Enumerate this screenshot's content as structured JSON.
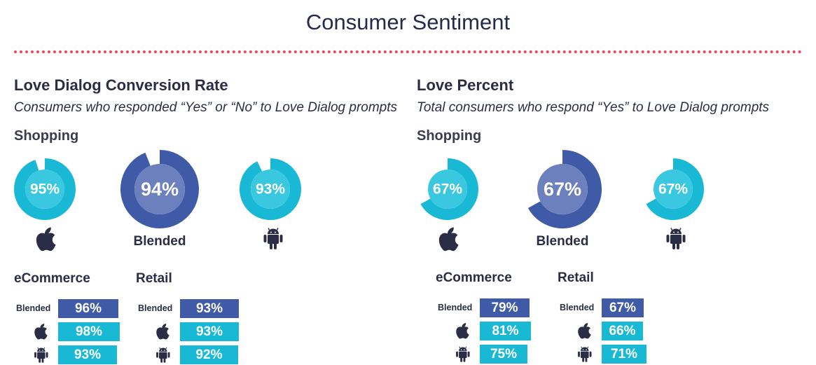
{
  "title": "Consumer Sentiment",
  "colors": {
    "blended": "#3f5aa6",
    "blended_inner": "#6b80bd",
    "platform": "#19b9d6",
    "platform_inner": "#3ac8e0",
    "divider": "#e64b5a"
  },
  "icons": [
    "apple-icon",
    "android-icon"
  ],
  "panels": [
    {
      "title": "Love Dialog Conversion Rate",
      "subtitle": "Consumers who responded “Yes” or “No” to Love Dialog prompts",
      "group": "Shopping",
      "blended_label": "Blended",
      "donuts": [
        {
          "platform": "iOS",
          "value": 95,
          "label": "95%"
        },
        {
          "platform": "Blended",
          "value": 94,
          "label": "94%"
        },
        {
          "platform": "Android",
          "value": 93,
          "label": "93%"
        }
      ],
      "sections": [
        {
          "title": "eCommerce",
          "row_label": "Blended",
          "bars": [
            {
              "platform": "Blended",
              "value": 96,
              "label": "96%"
            },
            {
              "platform": "iOS",
              "value": 98,
              "label": "98%"
            },
            {
              "platform": "Android",
              "value": 93,
              "label": "93%"
            }
          ]
        },
        {
          "title": "Retail",
          "row_label": "Blended",
          "bars": [
            {
              "platform": "Blended",
              "value": 93,
              "label": "93%"
            },
            {
              "platform": "iOS",
              "value": 93,
              "label": "93%"
            },
            {
              "platform": "Android",
              "value": 92,
              "label": "92%"
            }
          ]
        }
      ]
    },
    {
      "title": "Love Percent",
      "subtitle": "Total consumers who respond “Yes” to Love Dialog prompts",
      "group": "Shopping",
      "blended_label": "Blended",
      "donuts": [
        {
          "platform": "iOS",
          "value": 67,
          "label": "67%"
        },
        {
          "platform": "Blended",
          "value": 67,
          "label": "67%"
        },
        {
          "platform": "Android",
          "value": 67,
          "label": "67%"
        }
      ],
      "sections": [
        {
          "title": "eCommerce",
          "row_label": "Blended",
          "bars": [
            {
              "platform": "Blended",
              "value": 79,
              "label": "79%"
            },
            {
              "platform": "iOS",
              "value": 81,
              "label": "81%"
            },
            {
              "platform": "Android",
              "value": 75,
              "label": "75%"
            }
          ]
        },
        {
          "title": "Retail",
          "row_label": "Blended",
          "bars": [
            {
              "platform": "Blended",
              "value": 67,
              "label": "67%"
            },
            {
              "platform": "iOS",
              "value": 66,
              "label": "66%"
            },
            {
              "platform": "Android",
              "value": 71,
              "label": "71%"
            }
          ]
        }
      ]
    }
  ],
  "chart_data": [
    {
      "type": "pie",
      "title": "Love Dialog Conversion Rate",
      "categories": [
        "iOS",
        "Blended",
        "Android"
      ],
      "values": [
        95,
        94,
        93
      ]
    },
    {
      "type": "bar",
      "title": "eCommerce",
      "categories": [
        "Blended",
        "iOS",
        "Android"
      ],
      "values": [
        96,
        98,
        93
      ]
    },
    {
      "type": "bar",
      "title": "Retail",
      "categories": [
        "Blended",
        "iOS",
        "Android"
      ],
      "values": [
        93,
        93,
        92
      ]
    },
    {
      "type": "pie",
      "title": "Love Percent",
      "categories": [
        "iOS",
        "Blended",
        "Android"
      ],
      "values": [
        67,
        67,
        67
      ]
    },
    {
      "type": "bar",
      "title": "eCommerce",
      "categories": [
        "Blended",
        "iOS",
        "Android"
      ],
      "values": [
        79,
        81,
        75
      ]
    },
    {
      "type": "bar",
      "title": "Retail",
      "categories": [
        "Blended",
        "iOS",
        "Android"
      ],
      "values": [
        67,
        66,
        71
      ]
    }
  ]
}
